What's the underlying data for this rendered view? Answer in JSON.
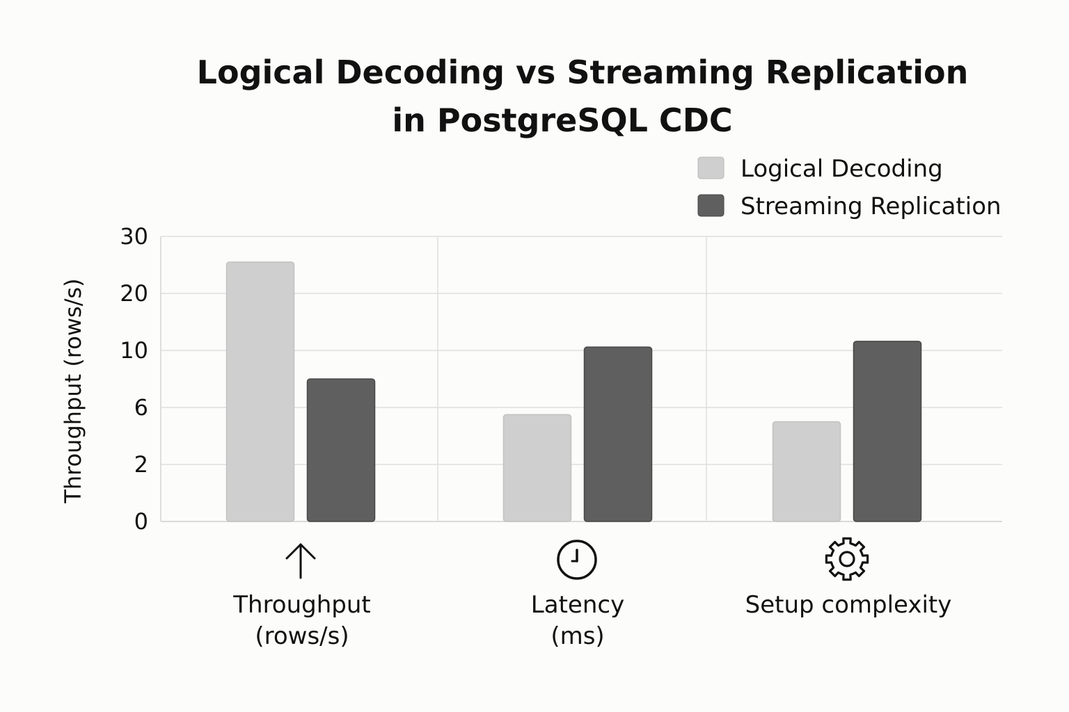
{
  "chart_data": {
    "type": "bar",
    "title_lines": [
      "Logical Decoding vs Streaming Replication",
      "in PostgreSQL CDC"
    ],
    "ylabel": "Throughput (rows/s)",
    "y_ticks": [
      {
        "label": "30",
        "value": 30
      },
      {
        "label": "20",
        "value": 20
      },
      {
        "label": "10",
        "value": 10
      },
      {
        "label": "6",
        "value": 6
      },
      {
        "label": "2",
        "value": 2
      },
      {
        "label": "0",
        "value": 0
      }
    ],
    "ylim": [
      0,
      30
    ],
    "grid": true,
    "legend_position": "top-right",
    "categories": [
      {
        "label_lines": [
          "Throughput",
          "(rows/s)"
        ],
        "icon": "arrow-up-icon"
      },
      {
        "label_lines": [
          "Latency",
          "(ms)"
        ],
        "icon": "clock-icon"
      },
      {
        "label_lines": [
          "Setup complexity"
        ],
        "icon": "gear-icon"
      }
    ],
    "series": [
      {
        "name": "Logical Decoding",
        "color": "#cfcfcf",
        "values": [
          25.5,
          5.5,
          5.0
        ]
      },
      {
        "name": "Streaming Replication",
        "color": "#5f5f5f",
        "values": [
          8.0,
          10.6,
          11.6
        ]
      }
    ]
  }
}
